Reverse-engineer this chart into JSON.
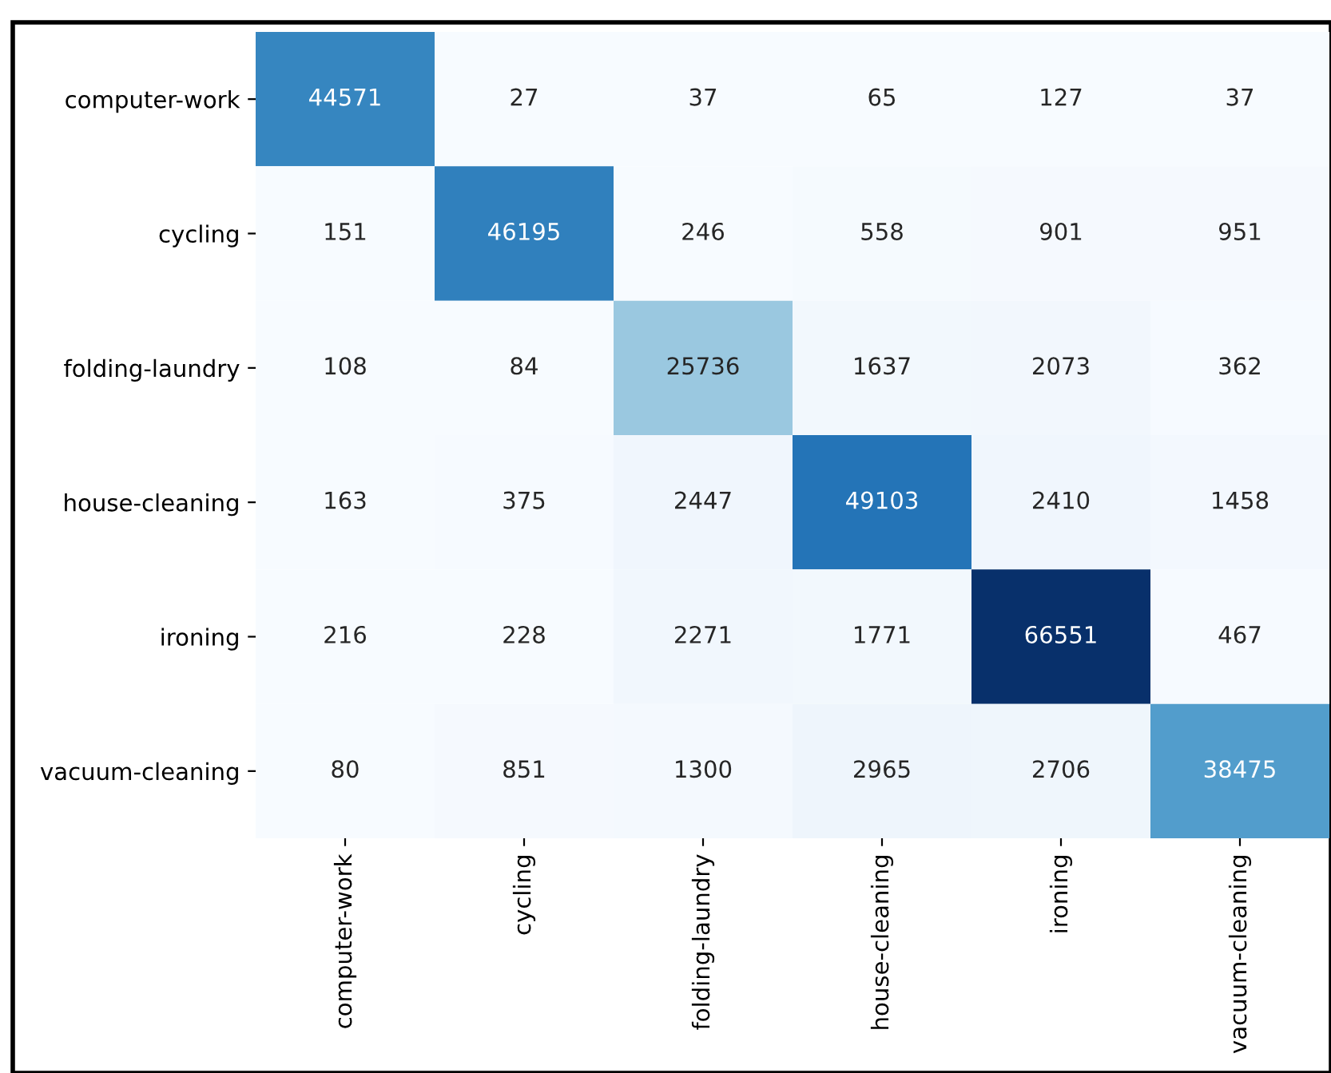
{
  "chart_data": {
    "type": "heatmap",
    "categories": [
      "computer-work",
      "cycling",
      "folding-laundry",
      "house-cleaning",
      "ironing",
      "vacuum-cleaning"
    ],
    "y_categories": [
      "computer-work",
      "cycling",
      "folding-laundry",
      "house-cleaning",
      "ironing",
      "vacuum-cleaning"
    ],
    "cells": [
      [
        44571,
        27,
        37,
        65,
        127,
        37
      ],
      [
        151,
        46195,
        246,
        558,
        901,
        951
      ],
      [
        108,
        84,
        25736,
        1637,
        2073,
        362
      ],
      [
        163,
        375,
        2447,
        49103,
        2410,
        1458
      ],
      [
        216,
        228,
        2271,
        1771,
        66551,
        467
      ],
      [
        80,
        851,
        1300,
        2965,
        2706,
        38475
      ]
    ],
    "data_labels": true
  }
}
